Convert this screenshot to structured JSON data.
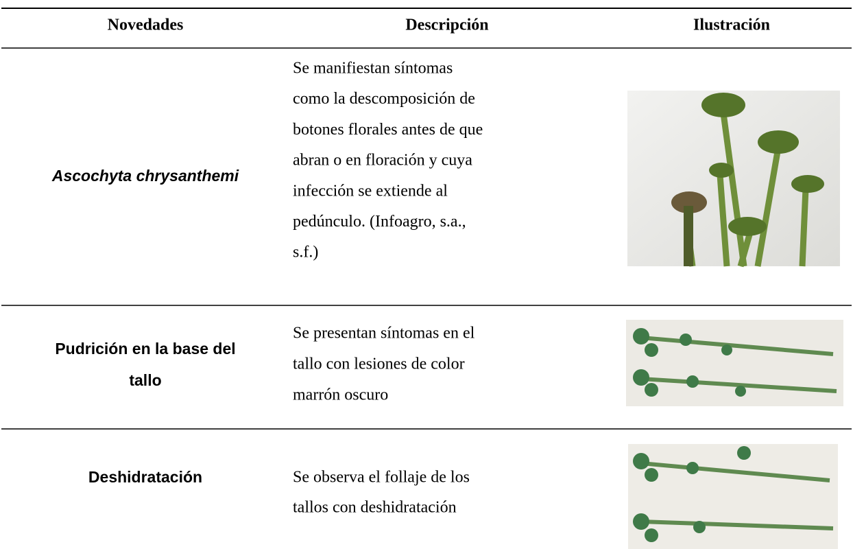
{
  "table": {
    "header": [
      "Novedades",
      "Descripción",
      "Ilustración"
    ],
    "rows": [
      {
        "name": [
          "Ascochyta chrysanthemi"
        ],
        "description": [
          "Se manifiestan síntomas",
          "como la descomposición de",
          "botones florales antes de que",
          "abran o en floración y cuya",
          "infección se extiende al",
          "pedúnculo. (Infoagro, s.a.,",
          "s.f.)"
        ]
      },
      {
        "name": [
          "Pudrición en la base del",
          "tallo"
        ],
        "description": [
          "Se presentan síntomas en el",
          "tallo con lesiones de color",
          "marrón oscuro"
        ]
      },
      {
        "name": [
          "Deshidratación"
        ],
        "description": [
          "Se observa el follaje de los",
          "tallos con deshidratación"
        ]
      }
    ]
  }
}
